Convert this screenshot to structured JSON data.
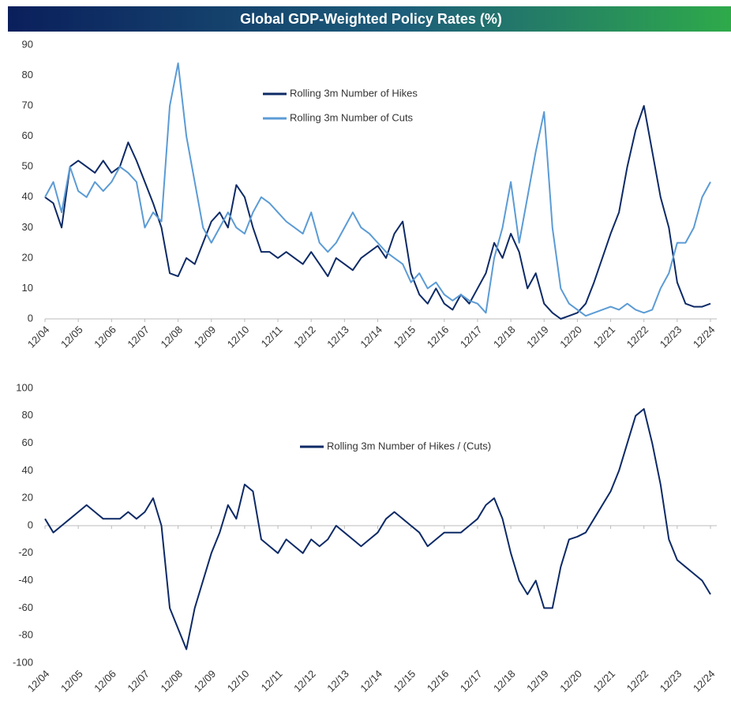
{
  "title": "Global GDP-Weighted Policy Rates (%)",
  "chart_data": [
    {
      "type": "line",
      "categories": [
        "12/04",
        null,
        null,
        null,
        "12/05",
        null,
        null,
        null,
        "12/06",
        null,
        null,
        null,
        "12/07",
        null,
        null,
        null,
        "12/08",
        null,
        null,
        null,
        "12/09",
        null,
        null,
        null,
        "12/10",
        null,
        null,
        null,
        "12/11",
        null,
        null,
        null,
        "12/12",
        null,
        null,
        null,
        "12/13",
        null,
        null,
        null,
        "12/14",
        null,
        null,
        null,
        "12/15",
        null,
        null,
        null,
        "12/16",
        null,
        null,
        null,
        "12/17",
        null,
        null,
        null,
        "12/18",
        null,
        null,
        null,
        "12/19",
        null,
        null,
        null,
        "12/20",
        null,
        null,
        null,
        "12/21",
        null,
        null,
        null,
        "12/22",
        null,
        null,
        null,
        "12/23",
        null,
        null,
        null,
        "12/24"
      ],
      "series": [
        {
          "name": "Rolling 3m Number of Hikes",
          "color": "#0d2a66",
          "values": [
            40,
            38,
            30,
            50,
            52,
            50,
            48,
            52,
            48,
            50,
            58,
            52,
            45,
            38,
            30,
            15,
            14,
            20,
            18,
            25,
            32,
            35,
            30,
            44,
            40,
            30,
            22,
            22,
            20,
            22,
            20,
            18,
            22,
            18,
            14,
            20,
            18,
            16,
            20,
            22,
            24,
            20,
            28,
            32,
            15,
            8,
            5,
            10,
            5,
            3,
            8,
            5,
            10,
            15,
            25,
            20,
            28,
            22,
            10,
            15,
            5,
            2,
            0,
            1,
            2,
            5,
            12,
            20,
            28,
            35,
            50,
            62,
            70,
            55,
            40,
            30,
            12,
            5,
            4,
            4,
            5
          ]
        },
        {
          "name": "Rolling 3m Number of Cuts",
          "color": "#5b9bd5",
          "values": [
            40,
            45,
            35,
            50,
            42,
            40,
            45,
            42,
            45,
            50,
            48,
            45,
            30,
            35,
            32,
            70,
            84,
            60,
            45,
            30,
            25,
            30,
            35,
            30,
            28,
            35,
            40,
            38,
            35,
            32,
            30,
            28,
            35,
            25,
            22,
            25,
            30,
            35,
            30,
            28,
            25,
            22,
            20,
            18,
            12,
            15,
            10,
            12,
            8,
            6,
            8,
            6,
            5,
            2,
            20,
            30,
            45,
            25,
            40,
            55,
            68,
            30,
            10,
            5,
            3,
            1,
            2,
            3,
            4,
            3,
            5,
            3,
            2,
            3,
            10,
            15,
            25,
            25,
            30,
            40,
            45
          ]
        }
      ],
      "ylim": [
        0,
        90
      ],
      "yticks": [
        0,
        10,
        20,
        30,
        40,
        50,
        60,
        70,
        80,
        90
      ]
    },
    {
      "type": "line",
      "categories": [
        "12/04",
        null,
        null,
        null,
        "12/05",
        null,
        null,
        null,
        "12/06",
        null,
        null,
        null,
        "12/07",
        null,
        null,
        null,
        "12/08",
        null,
        null,
        null,
        "12/09",
        null,
        null,
        null,
        "12/10",
        null,
        null,
        null,
        "12/11",
        null,
        null,
        null,
        "12/12",
        null,
        null,
        null,
        "12/13",
        null,
        null,
        null,
        "12/14",
        null,
        null,
        null,
        "12/15",
        null,
        null,
        null,
        "12/16",
        null,
        null,
        null,
        "12/17",
        null,
        null,
        null,
        "12/18",
        null,
        null,
        null,
        "12/19",
        null,
        null,
        null,
        "12/20",
        null,
        null,
        null,
        "12/21",
        null,
        null,
        null,
        "12/22",
        null,
        null,
        null,
        "12/23",
        null,
        null,
        null,
        "12/24"
      ],
      "series": [
        {
          "name": "Rolling 3m Number of Hikes / (Cuts)",
          "color": "#0d2a66",
          "values": [
            5,
            -5,
            0,
            5,
            10,
            15,
            10,
            5,
            5,
            5,
            10,
            5,
            10,
            20,
            0,
            -60,
            -75,
            -90,
            -60,
            -40,
            -20,
            -5,
            15,
            5,
            30,
            25,
            -10,
            -15,
            -20,
            -10,
            -15,
            -20,
            -10,
            -15,
            -10,
            0,
            -5,
            -10,
            -15,
            -10,
            -5,
            5,
            10,
            5,
            0,
            -5,
            -15,
            -10,
            -5,
            -5,
            -5,
            0,
            5,
            15,
            20,
            5,
            -20,
            -40,
            -50,
            -40,
            -60,
            -60,
            -30,
            -10,
            -8,
            -5,
            5,
            15,
            25,
            40,
            60,
            80,
            85,
            60,
            30,
            -10,
            -25,
            -30,
            -35,
            -40,
            -50
          ]
        }
      ],
      "ylim": [
        -100,
        100
      ],
      "yticks": [
        -100,
        -80,
        -60,
        -40,
        -20,
        0,
        20,
        40,
        60,
        80,
        100
      ]
    }
  ]
}
